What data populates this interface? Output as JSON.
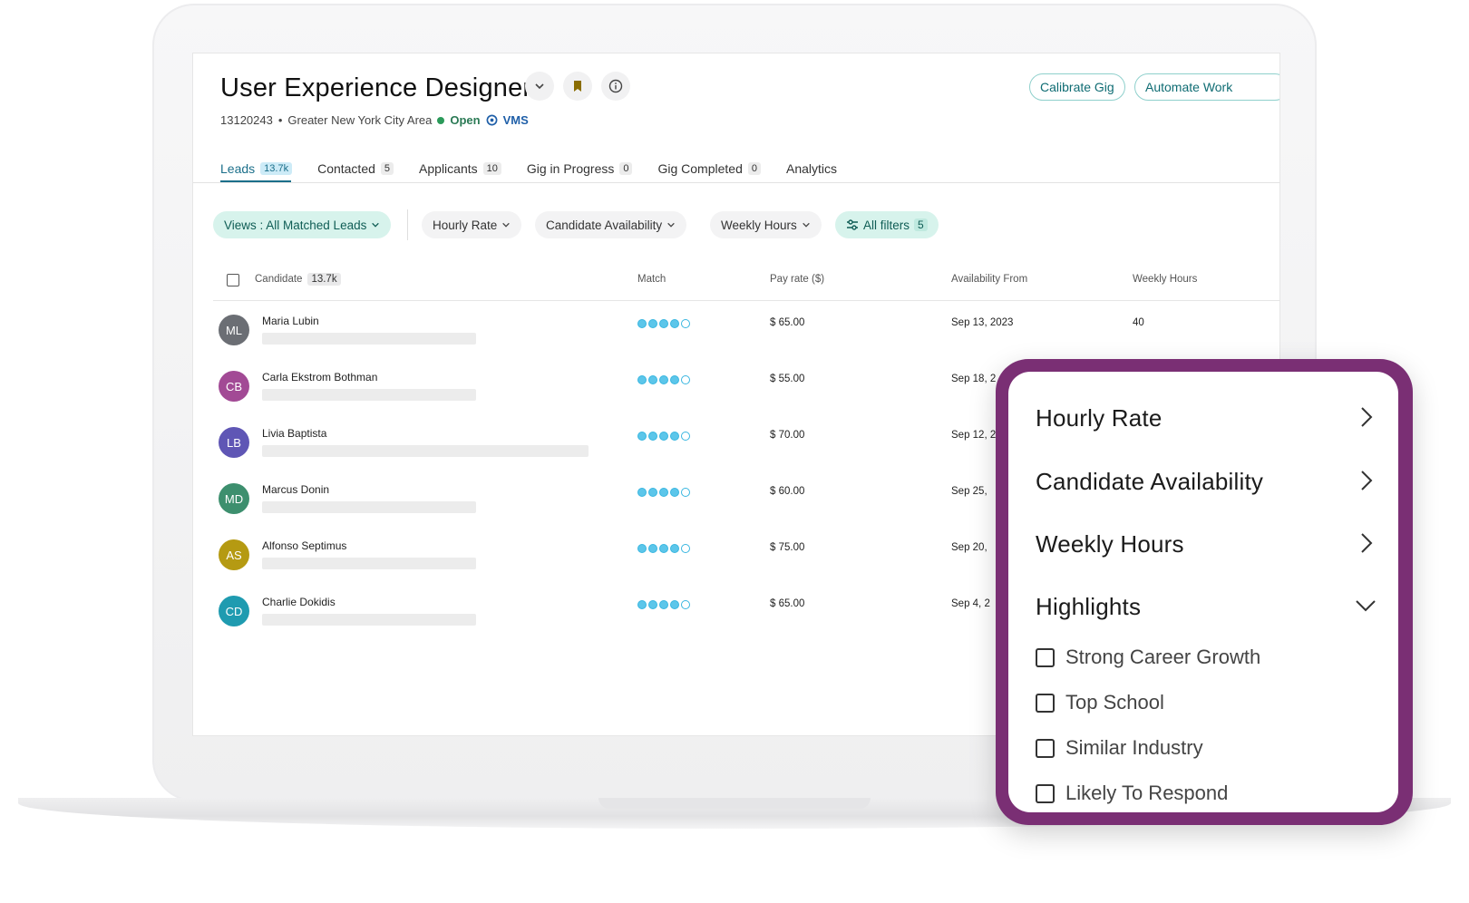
{
  "job": {
    "title": "User Experience Designer",
    "id": "13120243",
    "separator": "•",
    "location": "Greater New York City Area",
    "status": "Open",
    "source": "VMS"
  },
  "header_buttons": {
    "calibrate": "Calibrate Gig",
    "automate": "Automate Work"
  },
  "tabs": [
    {
      "label": "Leads",
      "count": "13.7k",
      "active": true
    },
    {
      "label": "Contacted",
      "count": "5"
    },
    {
      "label": "Applicants",
      "count": "10"
    },
    {
      "label": "Gig in Progress",
      "count": "0"
    },
    {
      "label": "Gig Completed",
      "count": "0"
    },
    {
      "label": "Analytics",
      "count": ""
    }
  ],
  "filters": {
    "views": "Views : All Matched Leads",
    "hourly_rate": "Hourly Rate",
    "availability": "Candidate Availability",
    "weekly_hours": "Weekly Hours",
    "all_filters": "All filters",
    "all_filters_count": "5"
  },
  "table": {
    "headers": {
      "candidate": "Candidate",
      "candidate_count": "13.7k",
      "match": "Match",
      "pay": "Pay rate ($)",
      "availability": "Availability From",
      "hours": "Weekly Hours"
    },
    "rows": [
      {
        "initials": "ML",
        "name": "Maria Lubin",
        "match": 4,
        "pay": "$ 65.00",
        "availability": "Sep 13, 2023",
        "hours": "40",
        "color": "#6b6e74"
      },
      {
        "initials": "CB",
        "name": "Carla Ekstrom Bothman",
        "match": 4,
        "pay": "$ 55.00",
        "availability": "Sep 18, 2",
        "hours": "",
        "color": "#a24a95"
      },
      {
        "initials": "LB",
        "name": "Livia Baptista",
        "match": 4,
        "pay": "$ 70.00",
        "availability": "Sep 12, 2",
        "hours": "",
        "color": "#5f56b5"
      },
      {
        "initials": "MD",
        "name": "Marcus Donin",
        "match": 4,
        "pay": "$ 60.00",
        "availability": "Sep 25,",
        "hours": "",
        "color": "#3d8f6e"
      },
      {
        "initials": "AS",
        "name": "Alfonso Septimus",
        "match": 4,
        "pay": "$ 75.00",
        "availability": "Sep 20,",
        "hours": "",
        "color": "#b59a12"
      },
      {
        "initials": "CD",
        "name": "Charlie Dokidis",
        "match": 4,
        "pay": "$ 65.00",
        "availability": "Sep 4, 2",
        "hours": "",
        "color": "#1f9bb0"
      }
    ]
  },
  "popup": {
    "sections": [
      "Hourly Rate",
      "Candidate Availability",
      "Weekly Hours"
    ],
    "highlights_title": "Highlights",
    "options": [
      "Strong Career Growth",
      "Top School",
      "Similar Industry",
      "Likely To Respond"
    ],
    "border_color": "#7a2f74"
  }
}
